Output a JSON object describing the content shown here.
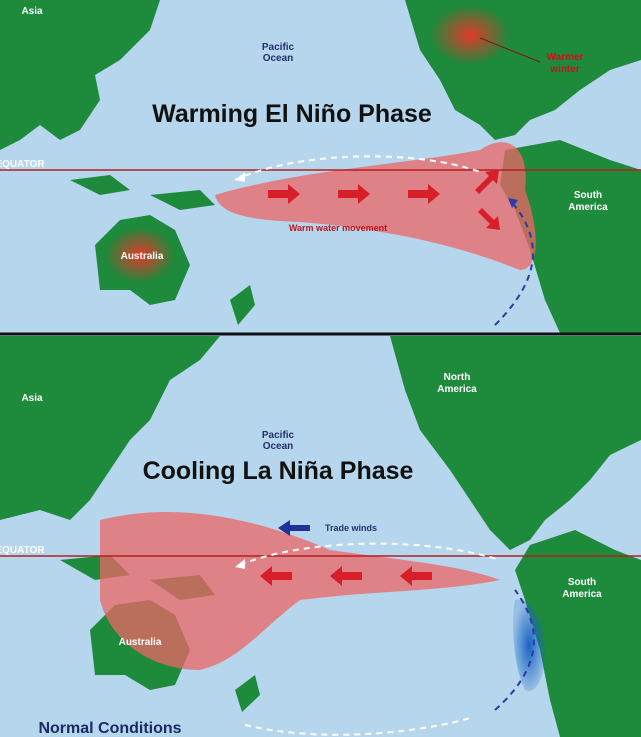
{
  "top_panel": {
    "asia": "Asia",
    "ocean": [
      "Pacific",
      "Ocean"
    ],
    "winter": [
      "Warmer",
      "winter"
    ],
    "title": "Warming El Niño Phase",
    "equator": "EQUATOR",
    "south_america": [
      "South",
      "America"
    ],
    "current": "Warm water movement",
    "australia": "Australia"
  },
  "bottom_panel": {
    "north_america": [
      "North",
      "America"
    ],
    "asia": "Asia",
    "ocean": [
      "Pacific",
      "Ocean"
    ],
    "title": "Cooling La Niña Phase",
    "winds": "Trade winds",
    "equator": "EQUATOR",
    "south_america": [
      "South",
      "America"
    ],
    "australia": "Australia",
    "caption": "Normal Conditions"
  }
}
